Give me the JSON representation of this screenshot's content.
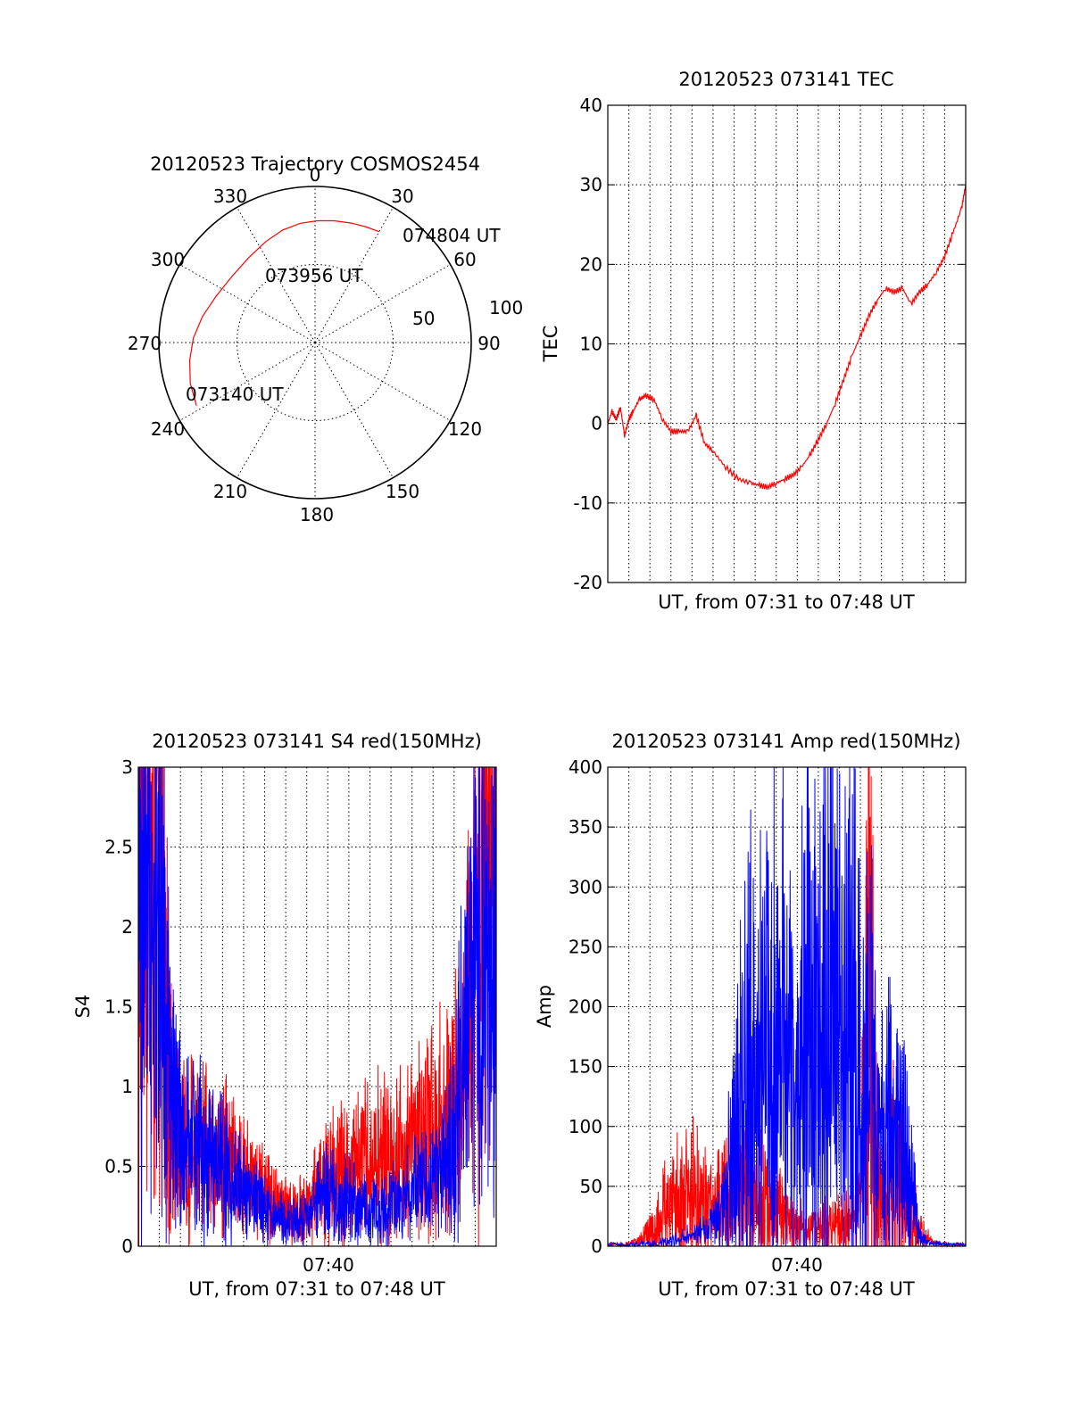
{
  "colors": {
    "red": "#ff0000",
    "blue": "#0000ff"
  },
  "chart_data": [
    {
      "type": "polar",
      "title": "20120523 Trajectory COSMOS2454",
      "angle_labels": [
        "0",
        "30",
        "60",
        "90",
        "120",
        "150",
        "180",
        "210",
        "240",
        "270",
        "300",
        "330"
      ],
      "radial_labels": [
        "50",
        "100"
      ],
      "trajectory": {
        "color": "#ff0000",
        "points": [
          {
            "az": 242,
            "zenith": 86
          },
          {
            "az": 252,
            "zenith": 84
          },
          {
            "az": 262,
            "zenith": 81
          },
          {
            "az": 272,
            "zenith": 78
          },
          {
            "az": 283,
            "zenith": 74
          },
          {
            "az": 295,
            "zenith": 70
          },
          {
            "az": 309,
            "zenith": 68
          },
          {
            "az": 322,
            "zenith": 69
          },
          {
            "az": 334,
            "zenith": 72
          },
          {
            "az": 344,
            "zenith": 75
          },
          {
            "az": 353,
            "zenith": 77
          },
          {
            "az": 1,
            "zenith": 78
          },
          {
            "az": 9,
            "zenith": 79
          },
          {
            "az": 17,
            "zenith": 80
          },
          {
            "az": 24,
            "zenith": 81
          },
          {
            "az": 30,
            "zenith": 82
          }
        ]
      },
      "annotations": [
        "074804 UT",
        "073956 UT",
        "073140 UT"
      ]
    },
    {
      "type": "line",
      "title": "20120523 073141 TEC",
      "xlabel": "UT, from 07:31 to 07:48 UT",
      "ylabel": "TEC",
      "xlim": [
        0,
        17
      ],
      "ylim": [
        -20,
        40
      ],
      "yticks": [
        "40",
        "30",
        "20",
        "10",
        "0",
        "-10",
        "-20"
      ],
      "grid": true,
      "series": [
        {
          "color": "#ff0000",
          "x": [
            0.0,
            0.2,
            0.4,
            0.6,
            0.8,
            1.0,
            1.2,
            1.5,
            1.8,
            2.2,
            2.6,
            3.0,
            3.4,
            3.8,
            4.2,
            4.6,
            5.0,
            5.6,
            6.2,
            6.8,
            7.2,
            7.6,
            8.0,
            8.4,
            8.8,
            9.2,
            9.6,
            10.0,
            10.4,
            10.8,
            11.2,
            11.6,
            12.0,
            12.4,
            12.8,
            13.2,
            13.6,
            14.0,
            14.4,
            14.8,
            15.2,
            15.6,
            16.0,
            16.4,
            16.8,
            17.0
          ],
          "y": [
            0.0,
            1.5,
            0.5,
            2.0,
            -1.5,
            0.5,
            1.5,
            3.0,
            3.5,
            3.0,
            0.5,
            -1.0,
            -1.0,
            -1.0,
            1.0,
            -2.5,
            -3.5,
            -5.5,
            -7.0,
            -7.5,
            -7.8,
            -8.0,
            -7.5,
            -7.0,
            -6.5,
            -5.5,
            -4.0,
            -2.0,
            0.0,
            2.5,
            5.5,
            8.5,
            11.0,
            13.5,
            15.5,
            17.0,
            16.5,
            17.0,
            15.0,
            16.5,
            17.5,
            19.0,
            21.0,
            24.0,
            27.0,
            30.0
          ]
        }
      ]
    },
    {
      "type": "line",
      "title": "20120523 073141 S4 red(150MHz)",
      "xlabel": "UT, from 07:31 to 07:48 UT",
      "ylabel": "S4",
      "xlim": [
        0,
        17
      ],
      "ylim": [
        0,
        3
      ],
      "xticks": [
        "07:40"
      ],
      "yticks": [
        "3",
        "2.5",
        "2",
        "1.5",
        "1",
        "0.5",
        "0"
      ],
      "grid": true,
      "series": [
        {
          "color": "#ff0000",
          "x": [
            0.0,
            0.5,
            1.0,
            1.3,
            1.6,
            2.0,
            2.5,
            3.0,
            3.5,
            4.0,
            4.5,
            5.0,
            5.5,
            6.0,
            6.5,
            7.0,
            7.5,
            8.0,
            8.5,
            9.0,
            9.5,
            10.0,
            10.5,
            11.0,
            11.5,
            12.0,
            12.5,
            13.0,
            13.5,
            14.0,
            14.5,
            15.0,
            15.5,
            16.0,
            16.5,
            17.0
          ],
          "y": [
            3.0,
            3.0,
            3.0,
            2.0,
            0.8,
            0.7,
            0.75,
            0.7,
            0.65,
            0.75,
            0.6,
            0.55,
            0.45,
            0.35,
            0.3,
            0.25,
            0.25,
            0.3,
            0.4,
            0.5,
            0.55,
            0.55,
            0.6,
            0.6,
            0.65,
            0.65,
            0.7,
            0.75,
            0.8,
            0.85,
            0.9,
            1.0,
            1.3,
            2.5,
            3.0,
            3.0
          ]
        },
        {
          "color": "#0000ff",
          "x": [
            0.0,
            0.5,
            1.0,
            1.3,
            1.6,
            2.0,
            2.5,
            3.0,
            3.5,
            4.0,
            4.5,
            5.0,
            5.5,
            6.0,
            6.5,
            7.0,
            7.5,
            8.0,
            8.5,
            9.0,
            9.5,
            10.0,
            10.5,
            11.0,
            11.5,
            12.0,
            12.5,
            13.0,
            13.5,
            14.0,
            14.5,
            15.0,
            15.5,
            16.0,
            16.5,
            17.0
          ],
          "y": [
            3.0,
            2.5,
            2.5,
            1.5,
            1.0,
            0.8,
            0.7,
            0.75,
            0.6,
            0.6,
            0.45,
            0.4,
            0.35,
            0.3,
            0.22,
            0.2,
            0.18,
            0.2,
            0.35,
            0.4,
            0.3,
            0.35,
            0.3,
            0.25,
            0.25,
            0.3,
            0.35,
            0.4,
            0.45,
            0.5,
            0.55,
            0.8,
            1.5,
            2.0,
            2.2,
            2.0
          ]
        }
      ]
    },
    {
      "type": "line",
      "title": "20120523 073141 Amp red(150MHz)",
      "xlabel": "UT, from 07:31 to 07:48 UT",
      "ylabel": "Amp",
      "xlim": [
        0,
        17
      ],
      "ylim": [
        0,
        400
      ],
      "xticks": [
        "07:40"
      ],
      "yticks": [
        "400",
        "350",
        "300",
        "250",
        "200",
        "150",
        "100",
        "50",
        "0"
      ],
      "grid": true,
      "series": [
        {
          "color": "#ff0000",
          "x": [
            0.0,
            1.0,
            1.5,
            2.0,
            2.5,
            3.0,
            3.5,
            4.0,
            4.5,
            5.0,
            5.5,
            6.0,
            6.5,
            7.0,
            7.5,
            8.0,
            8.5,
            9.0,
            9.5,
            10.0,
            10.5,
            11.0,
            11.5,
            12.0,
            12.4,
            12.8,
            13.2,
            13.6,
            14.0,
            14.4,
            14.8,
            15.5,
            16.0,
            17.0
          ],
          "y": [
            2,
            2,
            5,
            15,
            30,
            45,
            50,
            55,
            45,
            40,
            50,
            55,
            60,
            60,
            55,
            40,
            25,
            20,
            20,
            25,
            20,
            25,
            30,
            35,
            340,
            60,
            70,
            80,
            60,
            40,
            15,
            3,
            2,
            2
          ]
        },
        {
          "color": "#0000ff",
          "x": [
            0.0,
            1.0,
            2.0,
            3.0,
            4.0,
            5.0,
            5.5,
            6.0,
            6.5,
            7.0,
            7.5,
            8.0,
            8.5,
            9.0,
            9.5,
            10.0,
            10.5,
            11.0,
            11.5,
            12.0,
            12.5,
            13.0,
            13.5,
            14.0,
            14.4,
            14.8,
            15.2,
            16.0,
            17.0
          ],
          "y": [
            2,
            2,
            3,
            5,
            10,
            20,
            40,
            90,
            200,
            170,
            180,
            210,
            200,
            150,
            220,
            200,
            260,
            220,
            265,
            160,
            180,
            100,
            130,
            90,
            60,
            10,
            3,
            2,
            2
          ]
        }
      ]
    }
  ]
}
